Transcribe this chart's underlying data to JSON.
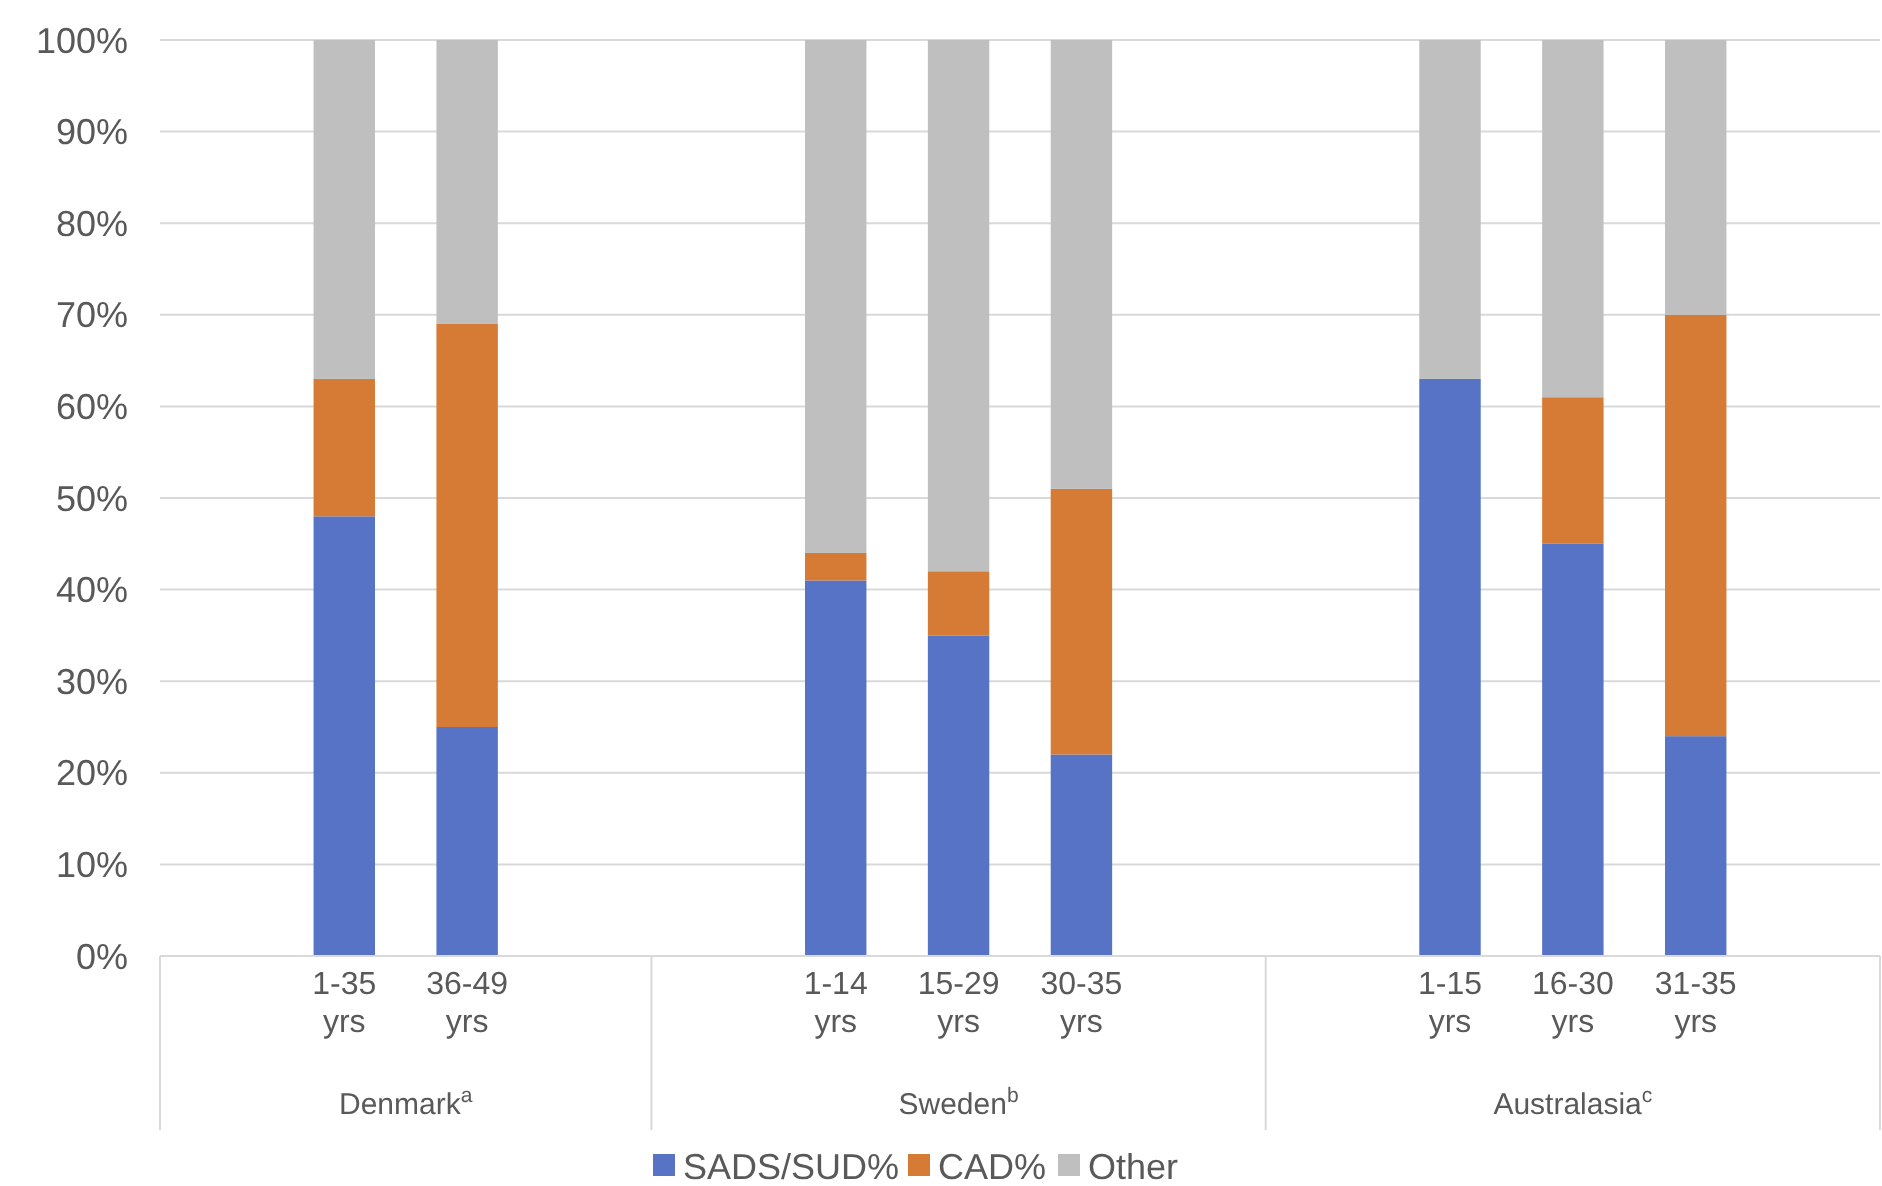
{
  "chart_data": {
    "type": "bar",
    "stacked": true,
    "categories": [
      null,
      "1-35 yrs",
      "36-49 yrs",
      null,
      null,
      "1-14 yrs",
      "15-29 yrs",
      "30-35 yrs",
      null,
      null,
      "1-15 yrs",
      "16-30 yrs",
      "31-35 yrs",
      null
    ],
    "series": [
      {
        "name": "SADS/SUD%",
        "color": "#5773c5",
        "values": [
          null,
          48,
          25,
          null,
          null,
          41,
          35,
          22,
          null,
          null,
          63,
          45,
          24,
          null
        ]
      },
      {
        "name": "CAD%",
        "color": "#d67b35",
        "values": [
          null,
          15,
          44,
          null,
          null,
          3,
          7,
          29,
          null,
          null,
          0,
          16,
          46,
          null
        ]
      },
      {
        "name": "Other",
        "color": "#bfbfbf",
        "values": [
          null,
          37,
          31,
          null,
          null,
          56,
          58,
          49,
          null,
          null,
          37,
          39,
          30,
          null
        ]
      }
    ],
    "ylim": [
      0,
      100
    ],
    "yticks": [
      {
        "value": 0,
        "label": "0%"
      },
      {
        "value": 10,
        "label": "10%"
      },
      {
        "value": 20,
        "label": "20%"
      },
      {
        "value": 30,
        "label": "30%"
      },
      {
        "value": 40,
        "label": "40%"
      },
      {
        "value": 50,
        "label": "50%"
      },
      {
        "value": 60,
        "label": "60%"
      },
      {
        "value": 70,
        "label": "70%"
      },
      {
        "value": 80,
        "label": "80%"
      },
      {
        "value": 90,
        "label": "90%"
      },
      {
        "value": 100,
        "label": "100%"
      }
    ],
    "grid": "y",
    "legend": "bottom",
    "annotations": [
      "Denmark$^{a}$",
      "Sweden$^{b}$",
      "Australasia$^{c}$"
    ]
  }
}
